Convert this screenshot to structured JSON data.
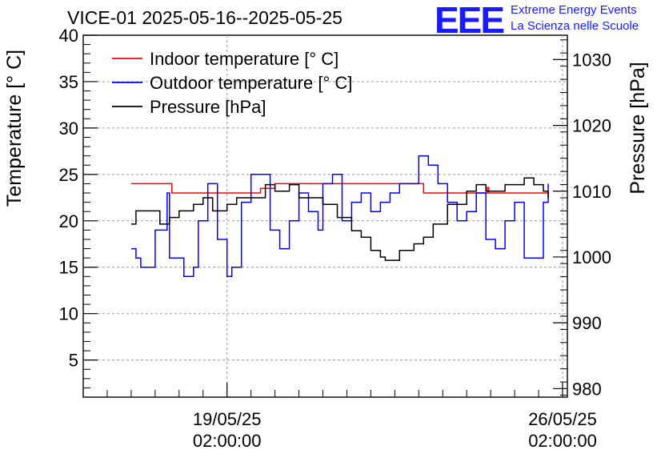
{
  "header": {
    "title": "VICE-01 2025-05-16--2025-05-25",
    "logo": "EEE",
    "logo_line1": "Extreme Energy Events",
    "logo_line2": "La Scienza nelle Scuole"
  },
  "chart_data": {
    "type": "line",
    "title": "VICE-01 2025-05-16--2025-05-25",
    "ylabel": "Temperature [° C]",
    "y2label": "Pressure [hPa]",
    "ylim": [
      1,
      40
    ],
    "y2lim": [
      978.7,
      1033.7
    ],
    "yticks": [
      "5",
      "10",
      "15",
      "20",
      "25",
      "30",
      "35",
      "40"
    ],
    "y2ticks": [
      "980",
      "990",
      "1000",
      "1010",
      "1020",
      "1030"
    ],
    "xlim_days": [
      0,
      10.1
    ],
    "xticks": [
      {
        "day": 3.0,
        "line1": "19/05/25",
        "line2": "02:00:00"
      },
      {
        "day": 10.0,
        "line1": "26/05/25",
        "line2": "02:00:00"
      }
    ],
    "grid": true,
    "legend_position": "top-left",
    "colors": {
      "indoor": "#ff0000",
      "outdoor": "#0000ff",
      "pressure": "#000000"
    },
    "series": [
      {
        "name": "Indoor temperature [° C]",
        "axis": "left",
        "color": "#ff0000",
        "x": [
          1.0,
          1.8,
          1.85,
          3.1,
          3.3,
          3.7,
          4.0,
          4.5,
          5.0,
          6.0,
          7.0,
          7.1,
          7.15,
          7.8,
          8.0,
          8.4,
          8.43,
          8.46,
          8.8,
          9.0,
          9.7
        ],
        "y": [
          24,
          24,
          23,
          23,
          23,
          23.5,
          24,
          24,
          24,
          24,
          24,
          23,
          23,
          23,
          23,
          23,
          23.6,
          23,
          23,
          23,
          23
        ]
      },
      {
        "name": "Outdoor temperature [° C]",
        "axis": "left",
        "color": "#0000ff",
        "x": [
          1.0,
          1.1,
          1.2,
          1.3,
          1.5,
          1.75,
          1.8,
          2.0,
          2.1,
          2.3,
          2.4,
          2.6,
          2.8,
          3.0,
          3.1,
          3.3,
          3.5,
          3.9,
          4.1,
          4.3,
          4.5,
          4.7,
          4.9,
          5.0,
          5.2,
          5.4,
          5.6,
          5.8,
          6.0,
          6.2,
          6.4,
          6.6,
          7.0,
          7.2,
          7.4,
          7.6,
          7.8,
          8.0,
          8.2,
          8.4,
          8.6,
          8.8,
          9.0,
          9.2,
          9.4,
          9.6,
          9.7
        ],
        "y": [
          17,
          16,
          15,
          15,
          19,
          23,
          16,
          16,
          14,
          15,
          20,
          24,
          18,
          14,
          15,
          22,
          25,
          19,
          17,
          20,
          23,
          21,
          19,
          24,
          25,
          20,
          22,
          23,
          21,
          22,
          23,
          24,
          27,
          26,
          24,
          22,
          20,
          21,
          23,
          18,
          17,
          20,
          22,
          16,
          16,
          22,
          24
        ]
      },
      {
        "name": "Pressure [hPa]",
        "axis": "right",
        "color": "#000000",
        "x": [
          1.0,
          1.1,
          1.2,
          1.4,
          1.6,
          1.8,
          2.0,
          2.3,
          2.5,
          2.7,
          3.0,
          3.2,
          3.5,
          3.8,
          4.0,
          4.3,
          4.5,
          4.7,
          5.0,
          5.3,
          5.6,
          5.8,
          6.0,
          6.2,
          6.3,
          6.6,
          6.9,
          7.1,
          7.3,
          7.6,
          8.0,
          8.2,
          8.4,
          8.6,
          8.8,
          9.0,
          9.2,
          9.4,
          9.6,
          9.7
        ],
        "y": [
          1005,
          1007,
          1007,
          1007,
          1005,
          1006,
          1007,
          1008,
          1009,
          1007,
          1008,
          1009,
          1009,
          1011,
          1010,
          1011,
          1009,
          1009,
          1008,
          1006,
          1004,
          1003,
          1001,
          1000,
          999.5,
          1001,
          1002,
          1003,
          1005,
          1008,
          1010,
          1011,
          1010,
          1010,
          1011,
          1011,
          1012,
          1011,
          1010,
          1009
        ]
      }
    ]
  }
}
